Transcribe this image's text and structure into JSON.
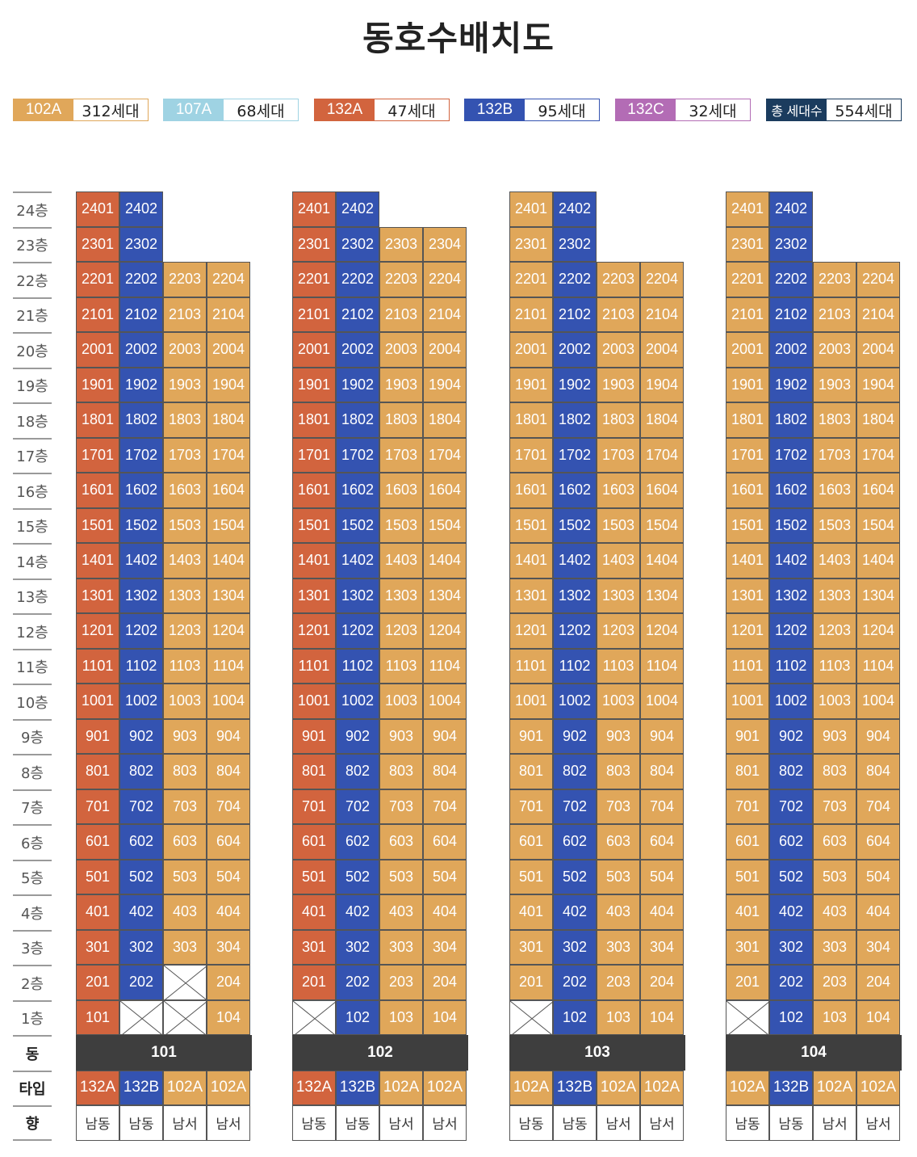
{
  "title": "동호수배치도",
  "colors": {
    "102A": "#e0a75a",
    "107A": "#9fd3e3",
    "132A": "#d2643e",
    "132B": "#3453b1",
    "132C": "#b36cb5",
    "total": "#1b3c5e"
  },
  "legend": [
    {
      "type": "102A",
      "count": "312세대",
      "color": "#e0a75a"
    },
    {
      "type": "107A",
      "count": "68세대",
      "color": "#9fd3e3"
    },
    {
      "type": "132A",
      "count": "47세대",
      "color": "#d2643e"
    },
    {
      "type": "132B",
      "count": "95세대",
      "color": "#3453b1"
    },
    {
      "type": "132C",
      "count": "32세대",
      "color": "#b36cb5"
    },
    {
      "type": "총 세대수",
      "count": "554세대",
      "color": "#1b3c5e"
    }
  ],
  "floor_labels": [
    "24층",
    "23층",
    "22층",
    "21층",
    "20층",
    "19층",
    "18층",
    "17층",
    "16층",
    "15층",
    "14층",
    "13층",
    "12층",
    "11층",
    "10층",
    "9층",
    "8층",
    "7층",
    "6층",
    "5층",
    "4층",
    "3층",
    "2층",
    "1층"
  ],
  "row_labels": {
    "dong": "동",
    "type": "타입",
    "direction": "향"
  },
  "buildings": [
    {
      "name": "101",
      "columns": [
        {
          "type": "132A",
          "direction": "남동",
          "top": 24,
          "empty": []
        },
        {
          "type": "132B",
          "direction": "남동",
          "top": 24,
          "empty": [
            1
          ]
        },
        {
          "type": "102A",
          "direction": "남서",
          "top": 22,
          "empty": [
            1,
            2
          ]
        },
        {
          "type": "102A",
          "direction": "남서",
          "top": 22,
          "empty": []
        }
      ]
    },
    {
      "name": "102",
      "columns": [
        {
          "type": "132A",
          "direction": "남동",
          "top": 24,
          "empty": [
            1
          ]
        },
        {
          "type": "132B",
          "direction": "남동",
          "top": 24,
          "empty": []
        },
        {
          "type": "102A",
          "direction": "남서",
          "top": 23,
          "empty": []
        },
        {
          "type": "102A",
          "direction": "남서",
          "top": 23,
          "empty": []
        }
      ]
    },
    {
      "name": "103",
      "columns": [
        {
          "type": "102A",
          "direction": "남동",
          "top": 24,
          "empty": [
            1
          ]
        },
        {
          "type": "132B",
          "direction": "남동",
          "top": 24,
          "empty": []
        },
        {
          "type": "102A",
          "direction": "남서",
          "top": 22,
          "empty": []
        },
        {
          "type": "102A",
          "direction": "남서",
          "top": 22,
          "empty": []
        }
      ]
    },
    {
      "name": "104",
      "columns": [
        {
          "type": "102A",
          "direction": "남동",
          "top": 24,
          "empty": [
            1
          ]
        },
        {
          "type": "132B",
          "direction": "남동",
          "top": 24,
          "empty": []
        },
        {
          "type": "102A",
          "direction": "남서",
          "top": 22,
          "empty": []
        },
        {
          "type": "102A",
          "direction": "남서",
          "top": 22,
          "empty": []
        }
      ]
    }
  ]
}
